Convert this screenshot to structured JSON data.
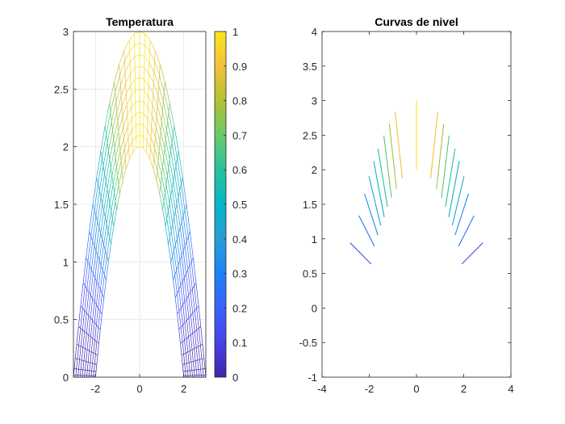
{
  "colors": {
    "axis": "#262626",
    "grid": "#e6e6e6",
    "colormap": [
      "#3e26a8",
      "#4743e6",
      "#3c62fe",
      "#1e83f2",
      "#269ed8",
      "#07b5c4",
      "#2ac0a0",
      "#69c96a",
      "#b1c234",
      "#f3c13b",
      "#f9e61c"
    ]
  },
  "chart_data": [
    {
      "type": "mesh",
      "title": "Temperatura",
      "xlim": [
        -3,
        3
      ],
      "ylim": [
        0,
        3
      ],
      "xticks": [
        -2,
        0,
        2
      ],
      "xtick_labels": [
        "-2",
        "0",
        "2"
      ],
      "yticks": [
        0,
        0.5,
        1,
        1.5,
        2,
        2.5,
        3
      ],
      "ytick_labels": [
        "0",
        "0.5",
        "1",
        "1.5",
        "2",
        "2.5",
        "3"
      ],
      "grid": true,
      "surface": "mesh of the region between the parabolas y = 2 - x²/2 (inner) and y = 3 - x²/3 (outer), colored by temperature",
      "colorbar": {
        "range": [
          0,
          1
        ],
        "ticks": [
          0,
          0.1,
          0.2,
          0.3,
          0.4,
          0.5,
          0.6,
          0.7,
          0.8,
          0.9,
          1
        ],
        "tick_labels": [
          "0",
          "0.1",
          "0.2",
          "0.3",
          "0.4",
          "0.5",
          "0.6",
          "0.7",
          "0.8",
          "0.9",
          "1"
        ],
        "colormap": "parula"
      }
    },
    {
      "type": "contour",
      "title": "Curvas de nivel",
      "xlim": [
        -4,
        4
      ],
      "ylim": [
        -1,
        4
      ],
      "xticks": [
        -4,
        -2,
        0,
        2,
        4
      ],
      "xtick_labels": [
        "-4",
        "-2",
        "0",
        "2",
        "4"
      ],
      "yticks": [
        -1,
        -0.5,
        0,
        0.5,
        1,
        1.5,
        2,
        2.5,
        3,
        3.5,
        4
      ],
      "ytick_labels": [
        "-1",
        "-0.5",
        "0",
        "0.5",
        "1",
        "1.5",
        "2",
        "2.5",
        "3",
        "3.5",
        "4"
      ],
      "grid": false,
      "segments": [
        {
          "level": 1.0,
          "from": [
            0,
            2.0
          ],
          "to": [
            0,
            3.0
          ]
        },
        {
          "level": 0.9,
          "from": [
            -0.6,
            1.88
          ],
          "to": [
            -0.9,
            2.83
          ]
        },
        {
          "level": 0.9,
          "from": [
            0.6,
            1.88
          ],
          "to": [
            0.9,
            2.83
          ]
        },
        {
          "level": 0.78,
          "from": [
            -0.85,
            1.73
          ],
          "to": [
            -1.15,
            2.66
          ]
        },
        {
          "level": 0.78,
          "from": [
            0.85,
            1.73
          ],
          "to": [
            1.15,
            2.66
          ]
        },
        {
          "level": 0.68,
          "from": [
            -1.06,
            1.6
          ],
          "to": [
            -1.38,
            2.49
          ]
        },
        {
          "level": 0.68,
          "from": [
            1.06,
            1.6
          ],
          "to": [
            1.38,
            2.49
          ]
        },
        {
          "level": 0.6,
          "from": [
            -1.23,
            1.47
          ],
          "to": [
            -1.63,
            2.3
          ]
        },
        {
          "level": 0.6,
          "from": [
            1.23,
            1.47
          ],
          "to": [
            1.63,
            2.3
          ]
        },
        {
          "level": 0.5,
          "from": [
            -1.37,
            1.32
          ],
          "to": [
            -1.81,
            2.12
          ]
        },
        {
          "level": 0.5,
          "from": [
            1.37,
            1.32
          ],
          "to": [
            1.81,
            2.12
          ]
        },
        {
          "level": 0.42,
          "from": [
            -1.52,
            1.2
          ],
          "to": [
            -2.01,
            1.9
          ]
        },
        {
          "level": 0.42,
          "from": [
            1.52,
            1.2
          ],
          "to": [
            2.01,
            1.9
          ]
        },
        {
          "level": 0.33,
          "from": [
            -1.64,
            1.06
          ],
          "to": [
            -2.2,
            1.65
          ]
        },
        {
          "level": 0.33,
          "from": [
            1.64,
            1.06
          ],
          "to": [
            2.2,
            1.65
          ]
        },
        {
          "level": 0.24,
          "from": [
            -1.79,
            0.9
          ],
          "to": [
            -2.43,
            1.33
          ]
        },
        {
          "level": 0.24,
          "from": [
            1.79,
            0.9
          ],
          "to": [
            2.43,
            1.33
          ]
        },
        {
          "level": 0.14,
          "from": [
            -1.93,
            0.64
          ],
          "to": [
            -2.8,
            0.94
          ]
        },
        {
          "level": 0.14,
          "from": [
            1.93,
            0.64
          ],
          "to": [
            2.8,
            0.94
          ]
        }
      ]
    }
  ]
}
